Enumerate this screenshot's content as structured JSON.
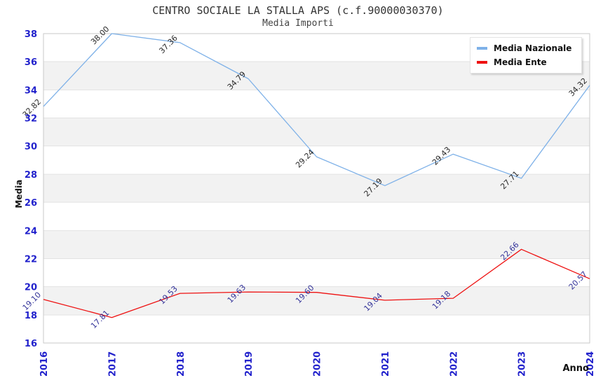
{
  "title": "CENTRO SOCIALE LA STALLA APS (c.f.90000030370)",
  "subtitle": "Media Importi",
  "y_axis_title": "Media",
  "x_axis_title": "Anno",
  "chart_data": {
    "type": "line",
    "x": [
      "2016",
      "2017",
      "2018",
      "2019",
      "2020",
      "2021",
      "2022",
      "2023",
      "2024"
    ],
    "series": [
      {
        "name": "Media Nazionale",
        "color": "#7eb1e8",
        "label_color": "#2a2a2a",
        "values": [
          32.82,
          38.0,
          37.36,
          34.79,
          29.24,
          27.19,
          29.43,
          27.71,
          34.32
        ]
      },
      {
        "name": "Media Ente",
        "color": "#ee1111",
        "label_color": "#333399",
        "values": [
          19.1,
          17.81,
          19.53,
          19.63,
          19.6,
          19.04,
          19.18,
          22.66,
          20.57
        ]
      }
    ],
    "xlabel": "Anno",
    "ylabel": "Media",
    "ylim": [
      16,
      38
    ],
    "yticks": [
      16,
      18,
      20,
      22,
      24,
      26,
      28,
      30,
      32,
      34,
      36,
      38
    ],
    "point_label_decimals": 2,
    "grid": true,
    "alternating_bands": true,
    "legend_position": "top-right",
    "legend": [
      "Media Nazionale",
      "Media Ente"
    ],
    "colors": {
      "tick_label": "#2222cc",
      "band": "#f2f2f2",
      "grid": "#e3e3e3",
      "border": "#c9c9c9",
      "title": "#333333"
    }
  }
}
